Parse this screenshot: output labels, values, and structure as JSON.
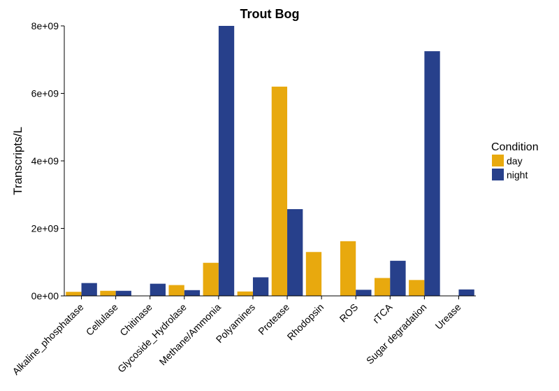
{
  "chart_data": {
    "type": "bar",
    "title": "Trout Bog",
    "xlabel": "",
    "ylabel": "Transcripts/L",
    "ylim": [
      0,
      8000000000
    ],
    "yticks": [
      0,
      2000000000,
      4000000000,
      6000000000,
      8000000000
    ],
    "ytick_labels": [
      "0e+00",
      "2e+09",
      "4e+09",
      "6e+09",
      "8e+09"
    ],
    "grid": false,
    "categories": [
      "Alkaline_phosphatase",
      "Cellulase",
      "Chitinase",
      "Glycoside_Hydrolase",
      "Methane/Ammonia",
      "Polyamines",
      "Protease",
      "Rhodopsin",
      "ROS",
      "rTCA",
      "Sugar degradation",
      "Urease"
    ],
    "series": [
      {
        "name": "day",
        "color": "#E8A90E",
        "values": [
          120000000,
          150000000,
          0,
          320000000,
          980000000,
          130000000,
          6200000000,
          1300000000,
          1620000000,
          530000000,
          470000000,
          0
        ]
      },
      {
        "name": "night",
        "color": "#27408B",
        "values": [
          380000000,
          150000000,
          360000000,
          170000000,
          8000000000,
          550000000,
          2570000000,
          0,
          180000000,
          1040000000,
          7250000000,
          190000000
        ]
      }
    ],
    "legend": {
      "title": "Condition",
      "placement": "right"
    }
  }
}
